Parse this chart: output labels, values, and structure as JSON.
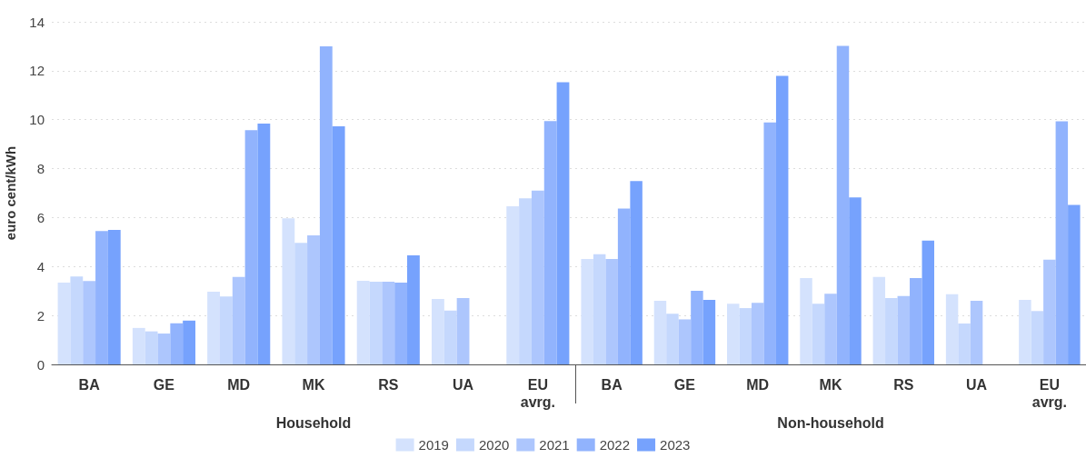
{
  "chart_data": [
    {
      "type": "bar",
      "xlabel": "Household",
      "ylabel": "euro cent/kWh",
      "categories": [
        "BA",
        "GE",
        "MD",
        "MK",
        "RS",
        "UA",
        "EU avrg."
      ],
      "ylim": [
        0,
        14
      ],
      "yticks": [
        0,
        2,
        4,
        6,
        8,
        10,
        12,
        14
      ],
      "grid": "y",
      "legend": "bottom",
      "series": [
        {
          "name": "2019",
          "color": "#d4e2fd",
          "values": [
            3.34,
            1.49,
            2.97,
            5.97,
            3.42,
            2.67,
            6.46
          ]
        },
        {
          "name": "2020",
          "color": "#c5d8fd",
          "values": [
            3.59,
            1.35,
            2.78,
            4.97,
            3.38,
            2.2,
            6.79
          ]
        },
        {
          "name": "2021",
          "color": "#adc6fd",
          "values": [
            3.41,
            1.26,
            3.57,
            5.27,
            3.38,
            2.71,
            7.1
          ]
        },
        {
          "name": "2022",
          "color": "#91b3fd",
          "values": [
            5.45,
            1.68,
            9.57,
            13.0,
            3.34,
            null,
            9.94
          ]
        },
        {
          "name": "2023",
          "color": "#76a2fd",
          "values": [
            5.5,
            1.79,
            9.84,
            9.73,
            4.46,
            null,
            11.53
          ]
        }
      ]
    },
    {
      "type": "bar",
      "xlabel": "Non-household",
      "categories": [
        "BA",
        "GE",
        "MD",
        "MK",
        "RS",
        "UA",
        "EU avrg."
      ],
      "ylim": [
        0,
        14
      ],
      "yticks": [
        0,
        2,
        4,
        6,
        8,
        10,
        12,
        14
      ],
      "grid": "y",
      "tick_labels": "x",
      "series": [
        {
          "name": "2019",
          "color": "#d4e2fd",
          "values": [
            4.31,
            2.6,
            2.48,
            3.53,
            3.57,
            2.87,
            2.64
          ]
        },
        {
          "name": "2020",
          "color": "#c5d8fd",
          "values": [
            4.5,
            2.07,
            2.3,
            2.48,
            2.71,
            1.67,
            2.18
          ]
        },
        {
          "name": "2021",
          "color": "#adc6fd",
          "values": [
            4.31,
            1.84,
            2.52,
            2.89,
            2.79,
            2.6,
            4.28
          ]
        },
        {
          "name": "2022",
          "color": "#91b3fd",
          "values": [
            6.37,
            3.01,
            9.89,
            13.02,
            3.53,
            null,
            9.93
          ]
        },
        {
          "name": "2023",
          "color": "#76a2fd",
          "values": [
            7.49,
            2.64,
            11.79,
            6.82,
            5.06,
            null,
            6.52
          ]
        }
      ]
    }
  ]
}
